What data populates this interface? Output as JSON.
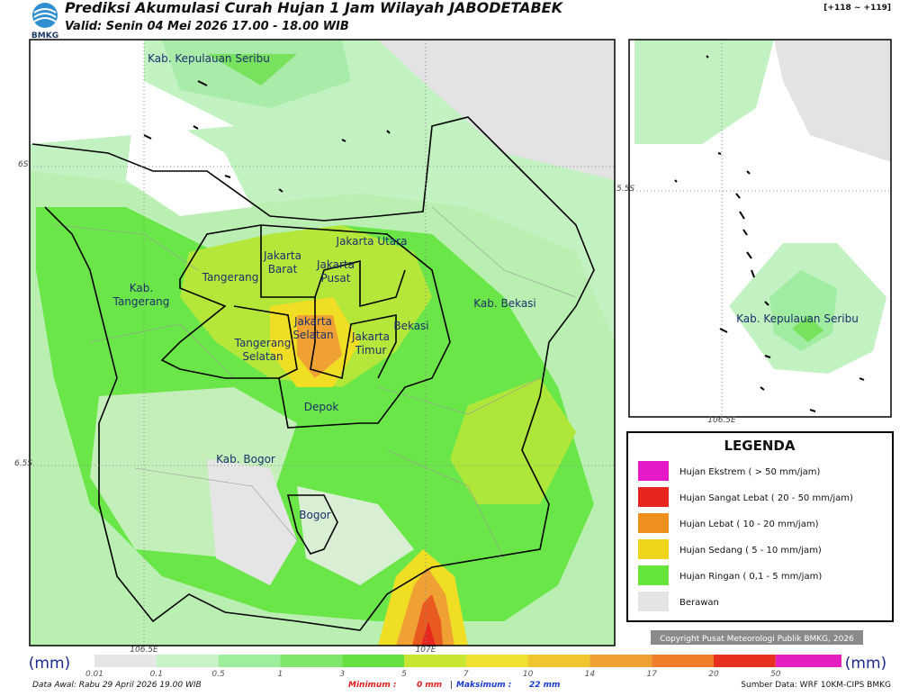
{
  "header": {
    "logo_text": "BMKG",
    "title": "Prediksi Akumulasi Curah Hujan 1 Jam Wilayah JABODETABEK",
    "subtitle": "Valid: Senin 04 Mei 2026 17.00 - 18.00 WIB",
    "version": "[+118 ~ +119]"
  },
  "map": {
    "regions": [
      "Kab. Kepulauan Seribu",
      "Jakarta Utara",
      "Jakarta Barat",
      "Jakarta Pusat",
      "Tangerang",
      "Kab. Tangerang",
      "Kab. Bekasi",
      "Jakarta Selatan",
      "Jakarta Timur",
      "Bekasi",
      "Tangerang Selatan",
      "Depok",
      "Kab. Bogor",
      "Bogor"
    ],
    "lat_labels": [
      "6S",
      "6.5S"
    ],
    "lon_labels": [
      "106.5E",
      "107E"
    ]
  },
  "inset": {
    "region": "Kab. Kepulauan Seribu",
    "lat_label": "5.5S",
    "lon_label": "106.5E"
  },
  "legend": {
    "title": "LEGENDA",
    "items": [
      "Hujan Ekstrem ( > 50 mm/jam)",
      "Hujan Sangat Lebat ( 20 - 50 mm/jam)",
      "Hujan Lebat ( 10 - 20 mm/jam)",
      "Hujan Sedang ( 5 - 10 mm/jam)",
      "Hujan Ringan ( 0,1 - 5 mm/jam)",
      "Berawan"
    ]
  },
  "copyright": "Copyright Pusat Meteorologi Publik BMKG, 2026",
  "colorbar": {
    "unit": "(mm)",
    "ticks": [
      "0.01",
      "0.1",
      "0.5",
      "1",
      "3",
      "5",
      "7",
      "10",
      "14",
      "17",
      "20",
      "50"
    ]
  },
  "footer": {
    "data_awal": "Data Awal: Rabu 29 April 2026 19.00 WIB",
    "minimum_label": "Minimum :",
    "minimum_value": "0 mm",
    "separator": "|",
    "maximum_label": "Maksimum :",
    "maximum_value": "22 mm",
    "source": "Sumber Data: WRF 10KM-CIPS BMKG"
  }
}
